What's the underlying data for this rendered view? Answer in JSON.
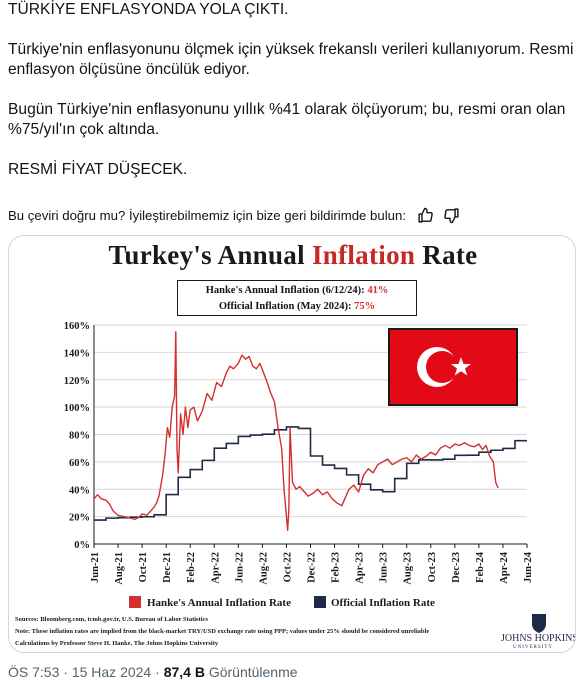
{
  "tweet": {
    "line1": "TÜRKİYE ENFLASYONDA YOLA ÇIKTI.",
    "para2": "Türkiye'nin enflasyonunu ölçmek için yüksek frekanslı verileri kullanıyorum. Resmi enflasyon ölçüsüne öncülük ediyor.",
    "para3": "Bugün Türkiye'nin enflasyonunu yıllık %41 olarak ölçüyorum; bu, resmi oran olan %75/yıl'ın çok altında.",
    "para4": "RESMİ FİYAT DÜŞECEK."
  },
  "translate": {
    "prompt": "Bu çeviri doğru mu? İyileştirebilmemiz için bize geri bildirimde bulun:"
  },
  "meta": {
    "time": "ÖS 7:53",
    "sep1": "·",
    "date": "15 Haz 2024",
    "sep2": "·",
    "views_count": "87,4 B",
    "views_label": "Görüntülenme"
  },
  "colors": {
    "hanke": "#d32f2f",
    "official": "#1f2a44",
    "flag_red": "#e30a17"
  },
  "chart_data": {
    "type": "line",
    "title_part1": "Turkey's Annual",
    "title_part2": "Inflation",
    "title_part3": "Rate",
    "info_line1_label": "Hanke's Annual Inflation (6/12/24):",
    "info_line1_value": "41%",
    "info_line2_label": "Official Inflation (May 2024):",
    "info_line2_value": "75%",
    "ylim": [
      0,
      160
    ],
    "y_ticks": [
      "0%",
      "20%",
      "40%",
      "60%",
      "80%",
      "100%",
      "120%",
      "140%",
      "160%"
    ],
    "x_ticks": [
      "Jun-21",
      "Aug-21",
      "Oct-21",
      "Dec-21",
      "Feb-22",
      "Apr-22",
      "Jun-22",
      "Aug-22",
      "Oct-22",
      "Dec-22",
      "Feb-23",
      "Apr-23",
      "Jun-23",
      "Aug-23",
      "Oct-23",
      "Dec-23",
      "Feb-24",
      "Apr-24",
      "Jun-24"
    ],
    "legend": [
      "Hanke's Annual Inflation Rate",
      "Official Inflation Rate"
    ],
    "sources": "Sources: Bloomberg.com, tcmb.gov.tr, U.S. Bureau of Labor Statistics",
    "note": "Note: These inflation rates are implied from the black-market TRY/USD exchange rate using PPP; values under 25% should be considered unreliable",
    "calc": "Calculations by Professor Steve H. Hanke, The Johns Hopkins University",
    "logo_text": "JOHNS HOPKINS",
    "logo_sub": "UNIVERSITY",
    "series": [
      {
        "name": "Hanke's Annual Inflation Rate",
        "points": [
          [
            0,
            33
          ],
          [
            0.3,
            36
          ],
          [
            0.6,
            33
          ],
          [
            1,
            32
          ],
          [
            1.3,
            29
          ],
          [
            1.6,
            24
          ],
          [
            2,
            21
          ],
          [
            2.5,
            20
          ],
          [
            3,
            19
          ],
          [
            3.4,
            18
          ],
          [
            3.8,
            20
          ],
          [
            4,
            22
          ],
          [
            4.4,
            21
          ],
          [
            4.8,
            25
          ],
          [
            5,
            27
          ],
          [
            5.2,
            30
          ],
          [
            5.4,
            35
          ],
          [
            5.7,
            50
          ],
          [
            5.9,
            65
          ],
          [
            6.1,
            85
          ],
          [
            6.3,
            78
          ],
          [
            6.5,
            100
          ],
          [
            6.7,
            108
          ],
          [
            6.8,
            155
          ],
          [
            6.9,
            70
          ],
          [
            7.0,
            52
          ],
          [
            7.2,
            95
          ],
          [
            7.4,
            80
          ],
          [
            7.6,
            100
          ],
          [
            7.8,
            85
          ],
          [
            8.0,
            98
          ],
          [
            8.3,
            100
          ],
          [
            8.6,
            90
          ],
          [
            9,
            97
          ],
          [
            9.4,
            110
          ],
          [
            9.8,
            105
          ],
          [
            10.2,
            118
          ],
          [
            10.6,
            115
          ],
          [
            11,
            125
          ],
          [
            11.3,
            130
          ],
          [
            11.6,
            128
          ],
          [
            12,
            132
          ],
          [
            12.3,
            138
          ],
          [
            12.6,
            135
          ],
          [
            12.9,
            137
          ],
          [
            13.2,
            130
          ],
          [
            13.5,
            128
          ],
          [
            13.8,
            132
          ],
          [
            14.1,
            125
          ],
          [
            14.4,
            118
          ],
          [
            14.7,
            110
          ],
          [
            15,
            104
          ],
          [
            15.3,
            85
          ],
          [
            15.6,
            70
          ],
          [
            15.8,
            40
          ],
          [
            16.0,
            20
          ],
          [
            16.1,
            10
          ],
          [
            16.2,
            25
          ],
          [
            16.3,
            85
          ],
          [
            16.5,
            45
          ],
          [
            16.8,
            40
          ],
          [
            17.1,
            42
          ],
          [
            17.5,
            38
          ],
          [
            17.8,
            35
          ],
          [
            18.2,
            37
          ],
          [
            18.6,
            40
          ],
          [
            19,
            36
          ],
          [
            19.4,
            38
          ],
          [
            19.8,
            33
          ],
          [
            20.2,
            30
          ],
          [
            20.6,
            28
          ],
          [
            20.9,
            34
          ],
          [
            21.2,
            40
          ],
          [
            21.6,
            43
          ],
          [
            22,
            38
          ],
          [
            22.4,
            50
          ],
          [
            22.8,
            55
          ],
          [
            23.2,
            52
          ],
          [
            23.6,
            58
          ],
          [
            24,
            60
          ],
          [
            24.4,
            62
          ],
          [
            24.8,
            58
          ],
          [
            25.2,
            60
          ],
          [
            25.6,
            62
          ],
          [
            26,
            63
          ],
          [
            26.4,
            60
          ],
          [
            26.8,
            65
          ],
          [
            27.2,
            62
          ],
          [
            27.6,
            64
          ],
          [
            28,
            67
          ],
          [
            28.4,
            65
          ],
          [
            28.8,
            70
          ],
          [
            29.2,
            72
          ],
          [
            29.6,
            70
          ],
          [
            30,
            73
          ],
          [
            30.4,
            72
          ],
          [
            30.8,
            74
          ],
          [
            31.2,
            72
          ],
          [
            31.6,
            71
          ],
          [
            32,
            73
          ],
          [
            32.3,
            69
          ],
          [
            32.6,
            72
          ],
          [
            32.9,
            64
          ],
          [
            33.2,
            60
          ],
          [
            33.4,
            45
          ],
          [
            33.6,
            41
          ]
        ]
      },
      {
        "name": "Official Inflation Rate",
        "points": [
          [
            0,
            17.5
          ],
          [
            1,
            18.9
          ],
          [
            2,
            19.2
          ],
          [
            3,
            19.6
          ],
          [
            4,
            19.9
          ],
          [
            5,
            21.3
          ],
          [
            6,
            36.1
          ],
          [
            7,
            48.7
          ],
          [
            8,
            54.4
          ],
          [
            9,
            61.1
          ],
          [
            10,
            69.97
          ],
          [
            11,
            73.5
          ],
          [
            12,
            78.6
          ],
          [
            13,
            79.6
          ],
          [
            14,
            80.2
          ],
          [
            15,
            83.45
          ],
          [
            16,
            85.5
          ],
          [
            17,
            84.4
          ],
          [
            18,
            64.3
          ],
          [
            19,
            57.7
          ],
          [
            20,
            55.2
          ],
          [
            21,
            50.5
          ],
          [
            22,
            43.7
          ],
          [
            23,
            39.6
          ],
          [
            24,
            38.2
          ],
          [
            25,
            47.8
          ],
          [
            26,
            58.9
          ],
          [
            27,
            61.5
          ],
          [
            28,
            61.4
          ],
          [
            29,
            61.98
          ],
          [
            30,
            64.8
          ],
          [
            31,
            64.9
          ],
          [
            32,
            67.1
          ],
          [
            33,
            68.5
          ],
          [
            34,
            69.8
          ],
          [
            35,
            75.45
          ]
        ]
      }
    ]
  }
}
